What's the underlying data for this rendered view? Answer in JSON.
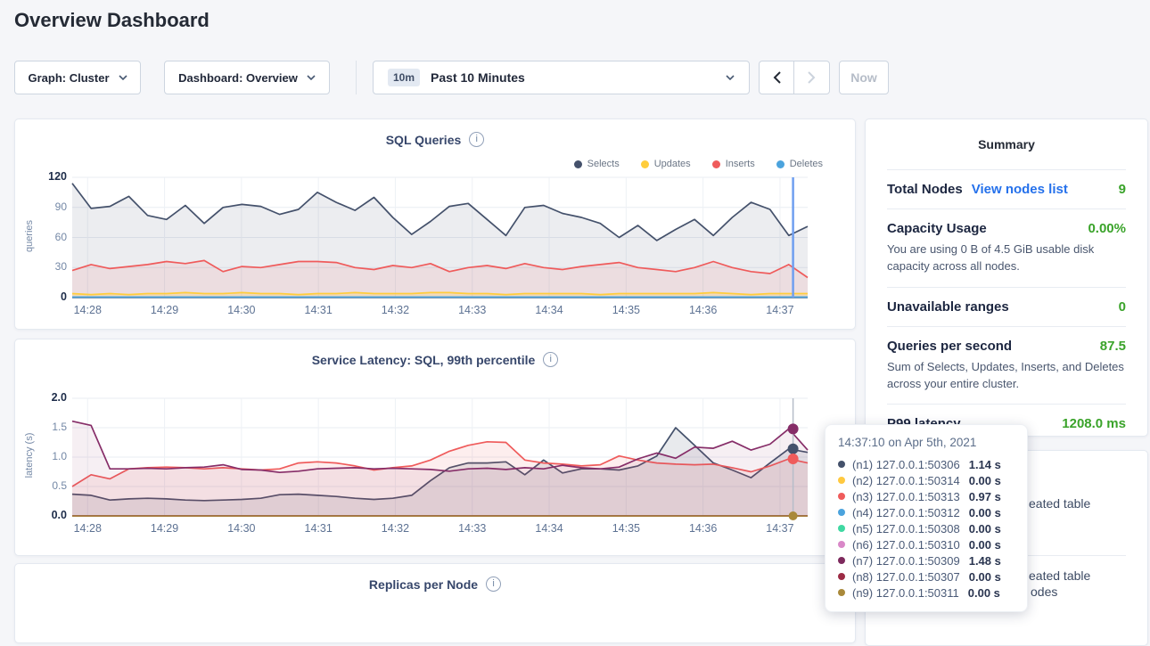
{
  "page": {
    "title": "Overview Dashboard"
  },
  "toolbar": {
    "graph_dropdown": "Graph: Cluster",
    "dashboard_dropdown": "Dashboard: Overview",
    "time_badge": "10m",
    "time_label": "Past 10 Minutes",
    "now_label": "Now"
  },
  "summary": {
    "title": "Summary",
    "total_nodes_label": "Total Nodes",
    "total_nodes_link": "View nodes list",
    "total_nodes_value": "9",
    "capacity_label": "Capacity Usage",
    "capacity_value": "0.00%",
    "capacity_desc": "You are using 0 B of 4.5 GiB usable disk capacity across all nodes.",
    "unavailable_label": "Unavailable ranges",
    "unavailable_value": "0",
    "qps_label": "Queries per second",
    "qps_value": "87.5",
    "qps_desc": "Sum of Selects, Updates, Inserts, and Deletes across your entire cluster.",
    "p99_label": "P99 latency",
    "p99_value": "1208.0 ms"
  },
  "events": {
    "fragments": [
      {
        "text": "eated table"
      },
      {
        "text": "eated table"
      },
      {
        "text": "odes"
      }
    ]
  },
  "tooltip": {
    "time": "14:37:10",
    "date_suffix": "on Apr 5th, 2021",
    "rows": [
      {
        "color": "#44516b",
        "label": "(n1) 127.0.0.1:50306",
        "value": "1.14 s"
      },
      {
        "color": "#ffc940",
        "label": "(n2) 127.0.0.1:50314",
        "value": "0.00 s"
      },
      {
        "color": "#ef5b5b",
        "label": "(n3) 127.0.0.1:50313",
        "value": "0.97 s"
      },
      {
        "color": "#4ba3dd",
        "label": "(n4) 127.0.0.1:50312",
        "value": "0.00 s"
      },
      {
        "color": "#40d8a2",
        "label": "(n5) 127.0.0.1:50308",
        "value": "0.00 s"
      },
      {
        "color": "#d988c8",
        "label": "(n6) 127.0.0.1:50310",
        "value": "0.00 s"
      },
      {
        "color": "#7d2a5d",
        "label": "(n7) 127.0.0.1:50309",
        "value": "1.48 s"
      },
      {
        "color": "#9c2b45",
        "label": "(n8) 127.0.0.1:50307",
        "value": "0.00 s"
      },
      {
        "color": "#a9893a",
        "label": "(n9) 127.0.0.1:50311",
        "value": "0.00 s"
      }
    ]
  },
  "chart_data": [
    {
      "type": "line",
      "title": "SQL Queries",
      "ylabel": "queries",
      "xlim": [
        -0.2,
        9.36
      ],
      "ylim": [
        0,
        120
      ],
      "yticks": [
        0,
        30,
        60,
        90,
        120
      ],
      "ytick_labels": [
        "0",
        "30",
        "60",
        "90",
        "120"
      ],
      "xticks": {
        "values": [
          0,
          1,
          2,
          3,
          4,
          5,
          6,
          7,
          8,
          9
        ],
        "labels": [
          "14:28",
          "14:29",
          "14:30",
          "14:31",
          "14:32",
          "14:33",
          "14:34",
          "14:35",
          "14:36",
          "14:37"
        ]
      },
      "legend": [
        {
          "label": "Selects",
          "color": "#44516b"
        },
        {
          "label": "Updates",
          "color": "#ffcd3c"
        },
        {
          "label": "Inserts",
          "color": "#ef5b5b"
        },
        {
          "label": "Deletes",
          "color": "#4ba3dd"
        }
      ],
      "series": [
        {
          "name": "Selects",
          "color": "#44516b",
          "fill": "rgba(68,81,107,0.10)",
          "values": [
            114,
            89,
            91,
            101,
            82,
            78,
            92,
            74,
            90,
            93,
            91,
            83,
            88,
            105,
            95,
            87,
            100,
            80,
            63,
            76,
            91,
            94,
            78,
            62,
            90,
            92,
            84,
            80,
            74,
            60,
            72,
            57,
            68,
            78,
            62,
            80,
            95,
            88,
            62,
            71
          ]
        },
        {
          "name": "Inserts",
          "color": "#ef5b5b",
          "fill": "rgba(239,91,91,0.10)",
          "values": [
            27,
            33,
            29,
            31,
            33,
            36,
            34,
            37,
            26,
            31,
            30,
            33,
            36,
            36,
            35,
            30,
            28,
            32,
            30,
            34,
            26,
            30,
            32,
            29,
            34,
            30,
            28,
            31,
            33,
            35,
            30,
            28,
            26,
            30,
            36,
            30,
            26,
            24,
            33,
            20
          ]
        },
        {
          "name": "Updates",
          "color": "#ffcd3c",
          "fill": "rgba(255,205,60,0.22)",
          "values": [
            4,
            3,
            4,
            3,
            4,
            4,
            5,
            4,
            4,
            5,
            4,
            4,
            3,
            4,
            4,
            5,
            4,
            4,
            4,
            5,
            5,
            4,
            4,
            3,
            4,
            4,
            4,
            4,
            3,
            4,
            4,
            4,
            4,
            4,
            5,
            4,
            3,
            4,
            4,
            4
          ]
        },
        {
          "name": "Deletes",
          "color": "#4ba3dd",
          "values": [
            0.5,
            0.5
          ]
        }
      ],
      "hover": {
        "t": 9.17,
        "line_color": "#6f9ff0",
        "line_width": 2.5
      }
    },
    {
      "type": "line",
      "title": "Service Latency: SQL, 99th percentile",
      "ylabel": "latency (s)",
      "xlim": [
        -0.2,
        9.36
      ],
      "ylim": [
        0,
        2.0
      ],
      "yticks": [
        0,
        0.5,
        1.0,
        1.5,
        2.0
      ],
      "ytick_labels": [
        "0.0",
        "0.5",
        "1.0",
        "1.5",
        "2.0"
      ],
      "xticks": {
        "values": [
          0,
          1,
          2,
          3,
          4,
          5,
          6,
          7,
          8,
          9
        ],
        "labels": [
          "14:28",
          "14:29",
          "14:30",
          "14:31",
          "14:32",
          "14:33",
          "14:34",
          "14:35",
          "14:36",
          "14:37"
        ]
      },
      "series": [
        {
          "name": "(n2) 127.0.0.1:50314",
          "color": "#ffc940",
          "values": [
            0,
            0
          ]
        },
        {
          "name": "(n4) 127.0.0.1:50312",
          "color": "#4ba3dd",
          "values": [
            0,
            0
          ]
        },
        {
          "name": "(n5) 127.0.0.1:50308",
          "color": "#40d8a2",
          "values": [
            0,
            0
          ]
        },
        {
          "name": "(n6) 127.0.0.1:50310",
          "color": "#d988c8",
          "values": [
            0,
            0
          ]
        },
        {
          "name": "(n8) 127.0.0.1:50307",
          "color": "#9c2b45",
          "values": [
            0,
            0
          ]
        },
        {
          "name": "(n9) 127.0.0.1:50311",
          "color": "#a9893a",
          "values": [
            0,
            0
          ]
        },
        {
          "name": "(n1) 127.0.0.1:50306",
          "color": "#44516b",
          "fill": "rgba(68,81,107,0.12)",
          "values": [
            0.37,
            0.35,
            0.27,
            0.29,
            0.3,
            0.29,
            0.27,
            0.26,
            0.27,
            0.28,
            0.3,
            0.36,
            0.37,
            0.35,
            0.33,
            0.3,
            0.28,
            0.3,
            0.35,
            0.6,
            0.82,
            0.9,
            0.9,
            0.92,
            0.7,
            0.95,
            0.73,
            0.8,
            0.8,
            0.78,
            0.85,
            1.02,
            1.5,
            1.2,
            0.9,
            0.78,
            0.65,
            0.9,
            1.14,
            1.08
          ]
        },
        {
          "name": "(n3) 127.0.0.1:50313",
          "color": "#ef5b5b",
          "fill": "rgba(239,91,91,0.10)",
          "values": [
            0.5,
            0.7,
            0.63,
            0.8,
            0.82,
            0.83,
            0.82,
            0.8,
            0.82,
            0.8,
            0.78,
            0.8,
            0.9,
            0.92,
            0.9,
            0.85,
            0.78,
            0.82,
            0.85,
            0.95,
            1.1,
            1.2,
            1.26,
            1.25,
            0.95,
            0.9,
            0.88,
            0.85,
            0.87,
            1.02,
            0.95,
            0.9,
            0.88,
            0.87,
            0.88,
            0.82,
            0.75,
            0.85,
            0.97,
            0.9
          ]
        },
        {
          "name": "(n7) 127.0.0.1:50309",
          "color": "#862d68",
          "fill": "rgba(134,45,104,0.08)",
          "values": [
            1.61,
            1.54,
            0.8,
            0.8,
            0.81,
            0.8,
            0.82,
            0.83,
            0.87,
            0.79,
            0.78,
            0.74,
            0.76,
            0.8,
            0.81,
            0.82,
            0.8,
            0.81,
            0.8,
            0.79,
            0.76,
            0.8,
            0.81,
            0.79,
            0.82,
            0.8,
            0.86,
            0.82,
            0.8,
            0.83,
            0.97,
            1.07,
            0.98,
            1.17,
            1.15,
            1.27,
            1.12,
            1.22,
            1.48,
            1.12
          ]
        }
      ],
      "hover": {
        "t": 9.17,
        "line_color": "#b6bdc9",
        "line_width": 1.5,
        "dots": [
          {
            "color": "#862d68",
            "value": 1.48,
            "r": 6
          },
          {
            "color": "#44516b",
            "value": 1.14,
            "r": 6
          },
          {
            "color": "#ef5b5b",
            "value": 0.97,
            "r": 6
          },
          {
            "color": "#a9893a",
            "value": 0.0,
            "r": 5
          }
        ]
      }
    },
    {
      "type": "line",
      "title": "Replicas per Node"
    }
  ]
}
